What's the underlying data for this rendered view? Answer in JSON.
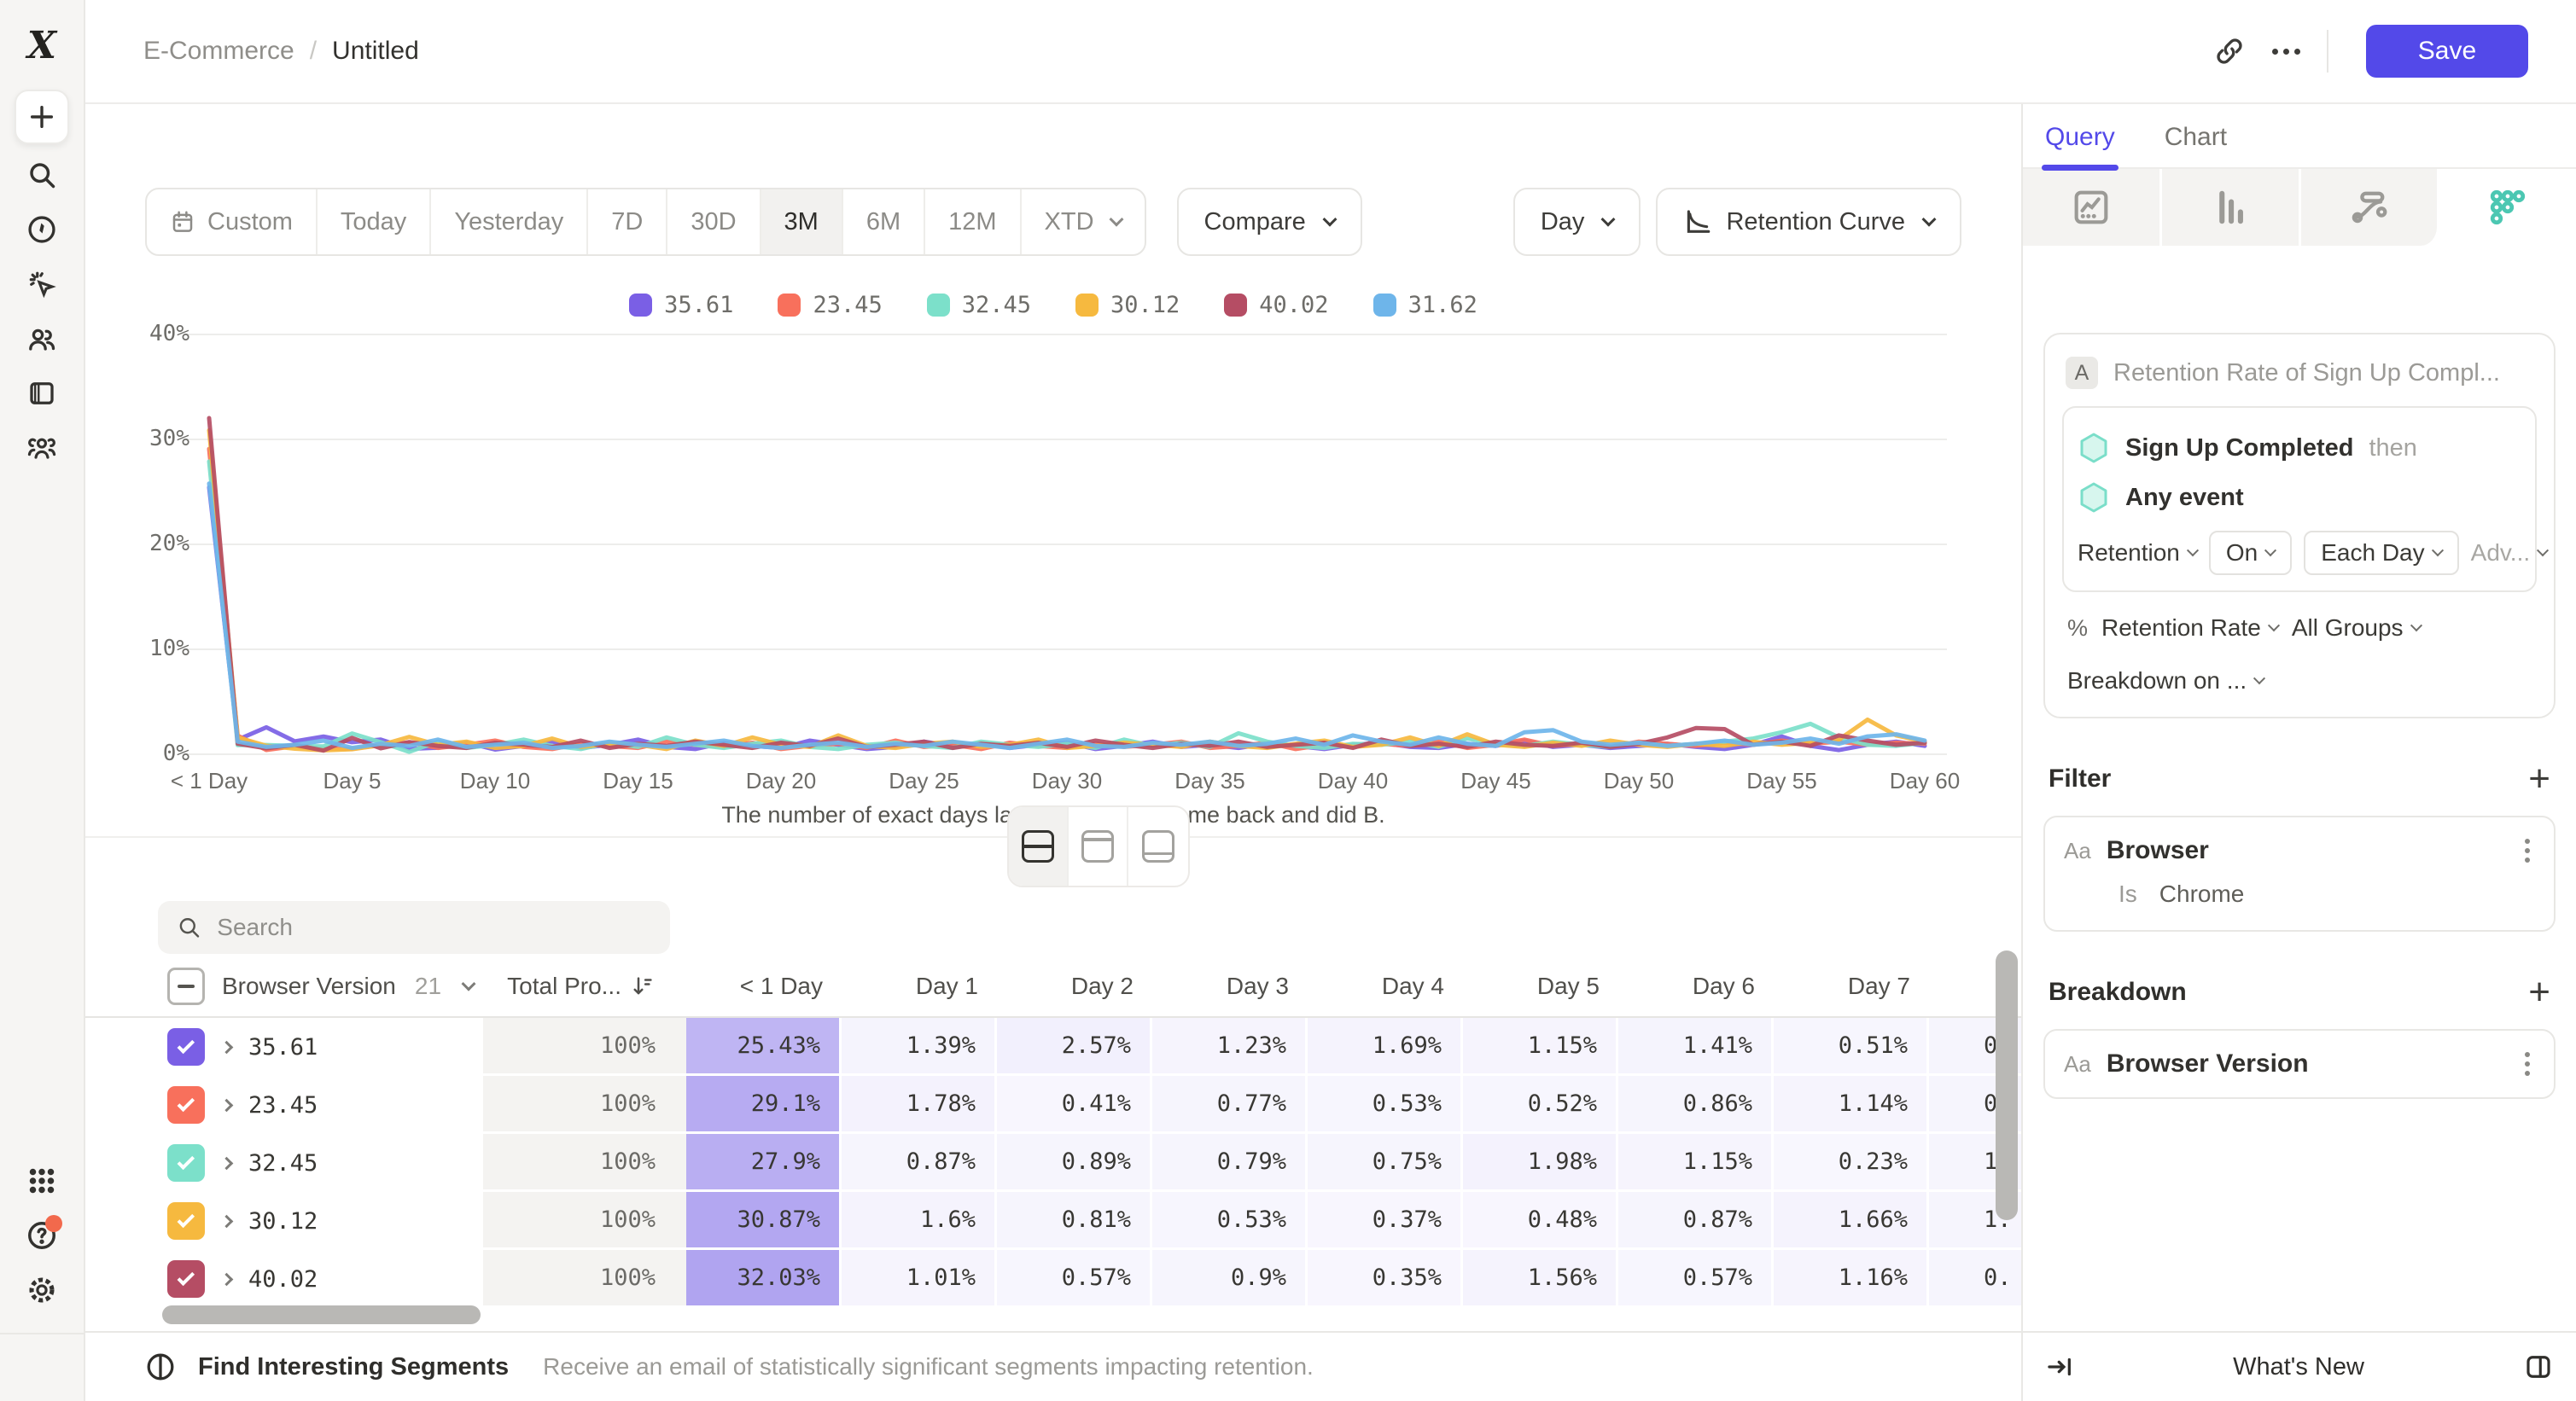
{
  "colors": {
    "accent": "#5349e9",
    "sidebar_bg": "#f6f5f3",
    "heat_base": "#6d56e4",
    "notification": "#f2694c",
    "hexagon_fill": "#d7f6ee",
    "hexagon_stroke": "#7adec9",
    "retention_icon_teal": "#4cc7b2"
  },
  "header": {
    "breadcrumb": {
      "parent": "E-Commerce",
      "separator": "/",
      "current": "Untitled"
    },
    "save_label": "Save"
  },
  "sidebar": {
    "icons": [
      "mixpanel-logo",
      "plus",
      "search",
      "compass",
      "magic-cursor",
      "users",
      "boards-panel",
      "community",
      "apps-grid",
      "help",
      "settings-gear",
      "collapse-arrow"
    ]
  },
  "toolbar": {
    "date_ranges": [
      {
        "label": "Custom",
        "icon": "calendar",
        "active": false,
        "chevron": false
      },
      {
        "label": "Today",
        "active": false,
        "chevron": false
      },
      {
        "label": "Yesterday",
        "active": false,
        "chevron": false
      },
      {
        "label": "7D",
        "active": false,
        "chevron": false
      },
      {
        "label": "30D",
        "active": false,
        "chevron": false
      },
      {
        "label": "3M",
        "active": true,
        "chevron": false
      },
      {
        "label": "6M",
        "active": false,
        "chevron": false
      },
      {
        "label": "12M",
        "active": false,
        "chevron": false
      },
      {
        "label": "XTD",
        "active": false,
        "chevron": true
      }
    ],
    "compare_label": "Compare",
    "granularity_label": "Day",
    "view_label": "Retention Curve"
  },
  "legend": {
    "items": [
      {
        "label": "35.61",
        "color": "#7a5fe5"
      },
      {
        "label": "23.45",
        "color": "#f8705c"
      },
      {
        "label": "32.45",
        "color": "#7ce0ca"
      },
      {
        "label": "30.12",
        "color": "#f6b93f"
      },
      {
        "label": "40.02",
        "color": "#b54d64"
      },
      {
        "label": "31.62",
        "color": "#6eb5ea"
      }
    ]
  },
  "chart_data": {
    "type": "line",
    "caption": "The number of exact days later your Users came back and did B.",
    "x_unit": "day",
    "x_range": [
      0,
      60
    ],
    "x_tick_labels": [
      "< 1 Day",
      "Day 5",
      "Day 10",
      "Day 15",
      "Day 20",
      "Day 25",
      "Day 30",
      "Day 35",
      "Day 40",
      "Day 45",
      "Day 50",
      "Day 55",
      "Day 60"
    ],
    "ylim": [
      0,
      40
    ],
    "y_tick_labels": [
      "40%",
      "30%",
      "20%",
      "10%",
      "0%"
    ],
    "grid": true,
    "legend_position": "top-center",
    "series": [
      {
        "name": "35.61",
        "color": "#7a5fe5",
        "values": [
          25.43,
          1.39,
          2.57,
          1.23,
          1.69,
          1.15,
          1.41,
          0.51,
          0.62,
          1.1,
          0.45,
          0.8,
          1.2,
          0.6,
          0.9,
          1.4,
          0.7,
          0.5,
          1.1,
          0.8,
          0.6,
          1.3,
          0.9,
          0.5,
          0.7,
          1.2,
          0.8,
          1.0,
          0.6,
          0.9,
          1.1,
          0.5,
          0.8,
          1.2,
          0.7,
          0.9,
          0.6,
          1.0,
          0.8,
          0.5,
          0.9,
          1.1,
          0.7,
          0.6,
          1.0,
          0.8,
          1.3,
          0.7,
          0.9,
          0.6,
          0.8,
          1.0,
          0.7,
          0.5,
          0.9,
          1.7,
          0.8,
          0.4,
          0.9,
          1.2,
          0.8
        ]
      },
      {
        "name": "23.45",
        "color": "#f8705c",
        "values": [
          29.1,
          1.78,
          0.41,
          0.77,
          0.53,
          0.52,
          0.86,
          1.14,
          0.6,
          0.9,
          1.3,
          0.7,
          0.5,
          1.0,
          0.8,
          0.6,
          1.2,
          0.9,
          0.7,
          1.1,
          0.5,
          0.8,
          1.0,
          0.6,
          1.3,
          0.7,
          0.9,
          0.5,
          1.1,
          0.8,
          0.6,
          1.0,
          0.7,
          0.9,
          1.2,
          0.6,
          0.8,
          1.1,
          0.5,
          0.9,
          0.7,
          1.0,
          0.8,
          1.2,
          0.6,
          0.9,
          1.4,
          0.8,
          1.0,
          0.7,
          1.2,
          1.0,
          0.8,
          1.1,
          0.9,
          1.3,
          1.0,
          1.2,
          0.9,
          1.1,
          1.0
        ]
      },
      {
        "name": "32.45",
        "color": "#7ce0ca",
        "values": [
          27.9,
          0.87,
          0.89,
          0.79,
          0.75,
          1.98,
          1.15,
          0.23,
          1.2,
          0.6,
          0.9,
          1.4,
          0.8,
          0.5,
          1.1,
          0.7,
          1.6,
          0.9,
          0.6,
          1.0,
          1.3,
          0.7,
          0.5,
          0.9,
          1.1,
          0.8,
          0.6,
          1.2,
          0.9,
          0.7,
          1.0,
          0.6,
          1.4,
          0.8,
          1.1,
          0.7,
          2.0,
          1.2,
          0.8,
          0.6,
          1.0,
          0.9,
          1.2,
          0.7,
          1.5,
          1.0,
          0.8,
          1.2,
          0.9,
          0.7,
          1.1,
          0.8,
          1.0,
          1.2,
          1.5,
          2.1,
          2.9,
          1.6,
          0.9,
          0.8,
          1.1
        ]
      },
      {
        "name": "30.12",
        "color": "#f6b93f",
        "values": [
          30.87,
          1.6,
          0.81,
          0.53,
          0.37,
          0.48,
          0.87,
          1.66,
          0.9,
          1.2,
          0.6,
          0.8,
          1.5,
          0.7,
          1.0,
          0.9,
          0.5,
          1.3,
          0.8,
          1.6,
          0.9,
          0.7,
          1.8,
          0.8,
          0.6,
          1.0,
          1.2,
          0.7,
          0.9,
          1.4,
          0.6,
          0.8,
          1.1,
          0.9,
          0.7,
          1.2,
          0.8,
          0.6,
          1.0,
          1.3,
          0.7,
          0.9,
          1.6,
          0.8,
          1.9,
          0.9,
          0.7,
          1.1,
          0.8,
          1.3,
          0.9,
          0.7,
          1.0,
          0.8,
          1.2,
          0.9,
          1.1,
          1.4,
          3.3,
          1.8,
          1.2
        ]
      },
      {
        "name": "40.02",
        "color": "#b54d64",
        "values": [
          32.03,
          1.01,
          0.57,
          0.9,
          0.35,
          1.56,
          0.57,
          1.16,
          0.8,
          0.6,
          1.1,
          0.9,
          0.7,
          1.3,
          0.6,
          1.0,
          0.8,
          1.2,
          0.9,
          0.6,
          1.1,
          0.8,
          1.5,
          0.7,
          0.9,
          1.2,
          0.6,
          1.0,
          0.8,
          1.1,
          0.7,
          1.3,
          0.9,
          0.6,
          1.0,
          0.8,
          1.2,
          0.7,
          0.9,
          1.1,
          0.6,
          1.4,
          0.8,
          1.0,
          0.7,
          1.2,
          0.9,
          0.8,
          1.1,
          0.7,
          1.0,
          1.6,
          2.5,
          2.4,
          0.9,
          1.2,
          0.8,
          1.8,
          1.3,
          0.9,
          1.1
        ]
      },
      {
        "name": "31.62",
        "color": "#6eb5ea",
        "values": [
          25.8,
          1.2,
          0.7,
          0.9,
          1.3,
          0.6,
          1.0,
          0.8,
          1.4,
          0.7,
          0.9,
          1.1,
          0.6,
          0.8,
          1.2,
          0.9,
          0.7,
          1.0,
          1.3,
          0.8,
          0.6,
          0.9,
          1.1,
          0.7,
          1.0,
          0.8,
          1.2,
          0.9,
          0.6,
          1.0,
          1.4,
          0.8,
          0.7,
          1.1,
          0.9,
          1.2,
          0.8,
          1.0,
          1.5,
          0.9,
          1.8,
          1.2,
          0.9,
          1.6,
          1.0,
          0.8,
          2.1,
          2.3,
          1.2,
          0.9,
          1.1,
          0.8,
          1.0,
          1.3,
          0.9,
          1.1,
          1.5,
          1.0,
          1.7,
          1.9,
          1.3
        ]
      }
    ]
  },
  "layout_toggle": {
    "options": [
      "split-view",
      "chart-only",
      "table-only"
    ],
    "active_index": 0
  },
  "search": {
    "placeholder": "Search"
  },
  "table": {
    "group_column": "Browser Version",
    "group_count": "21",
    "total_column": "Total Pro...",
    "day_columns": [
      "< 1 Day",
      "Day 1",
      "Day 2",
      "Day 3",
      "Day 4",
      "Day 5",
      "Day 6",
      "Day 7"
    ],
    "rows": [
      {
        "label": "35.61",
        "color": "#7a5fe5",
        "total": "100%",
        "checked": true,
        "values": [
          "25.43%",
          "1.39%",
          "2.57%",
          "1.23%",
          "1.69%",
          "1.15%",
          "1.41%",
          "0.51%"
        ],
        "partial": "0"
      },
      {
        "label": "23.45",
        "color": "#f8705c",
        "total": "100%",
        "checked": true,
        "values": [
          "29.1%",
          "1.78%",
          "0.41%",
          "0.77%",
          "0.53%",
          "0.52%",
          "0.86%",
          "1.14%"
        ],
        "partial": "0"
      },
      {
        "label": "32.45",
        "color": "#7ce0ca",
        "total": "100%",
        "checked": true,
        "values": [
          "27.9%",
          "0.87%",
          "0.89%",
          "0.79%",
          "0.75%",
          "1.98%",
          "1.15%",
          "0.23%"
        ],
        "partial": "1"
      },
      {
        "label": "30.12",
        "color": "#f6b93f",
        "total": "100%",
        "checked": true,
        "values": [
          "30.87%",
          "1.6%",
          "0.81%",
          "0.53%",
          "0.37%",
          "0.48%",
          "0.87%",
          "1.66%"
        ],
        "partial": "1"
      },
      {
        "label": "40.02",
        "color": "#b54d64",
        "total": "100%",
        "checked": true,
        "values": [
          "32.03%",
          "1.01%",
          "0.57%",
          "0.9%",
          "0.35%",
          "1.56%",
          "0.57%",
          "1.16%"
        ],
        "partial": "0"
      }
    ]
  },
  "panel": {
    "tabs": [
      {
        "label": "Query",
        "active": true
      },
      {
        "label": "Chart",
        "active": false
      }
    ],
    "chart_types": [
      "insights-line",
      "metrics-bars",
      "flows",
      "retention-dots"
    ],
    "active_chart_type_index": 3,
    "query": {
      "badge": "A",
      "title": "Retention Rate of Sign Up Compl...",
      "step1": "Sign Up Completed",
      "then_label": "then",
      "step2": "Any event",
      "retention_label": "Retention",
      "on_label": "On",
      "each_day_label": "Each Day",
      "adv_label": "Adv...",
      "metric_icon": "%",
      "metric_label": "Retention Rate",
      "groups_label": "All Groups",
      "breakdown_on_label": "Breakdown on ..."
    },
    "filter": {
      "title": "Filter",
      "type_badge": "Aa",
      "property": "Browser",
      "operator": "Is",
      "value": "Chrome"
    },
    "breakdown": {
      "title": "Breakdown",
      "type_badge": "Aa",
      "property": "Browser Version"
    },
    "whats_new_label": "What's New"
  },
  "footer": {
    "cta_label": "Find Interesting Segments",
    "description": "Receive an email of statistically significant segments impacting retention."
  }
}
